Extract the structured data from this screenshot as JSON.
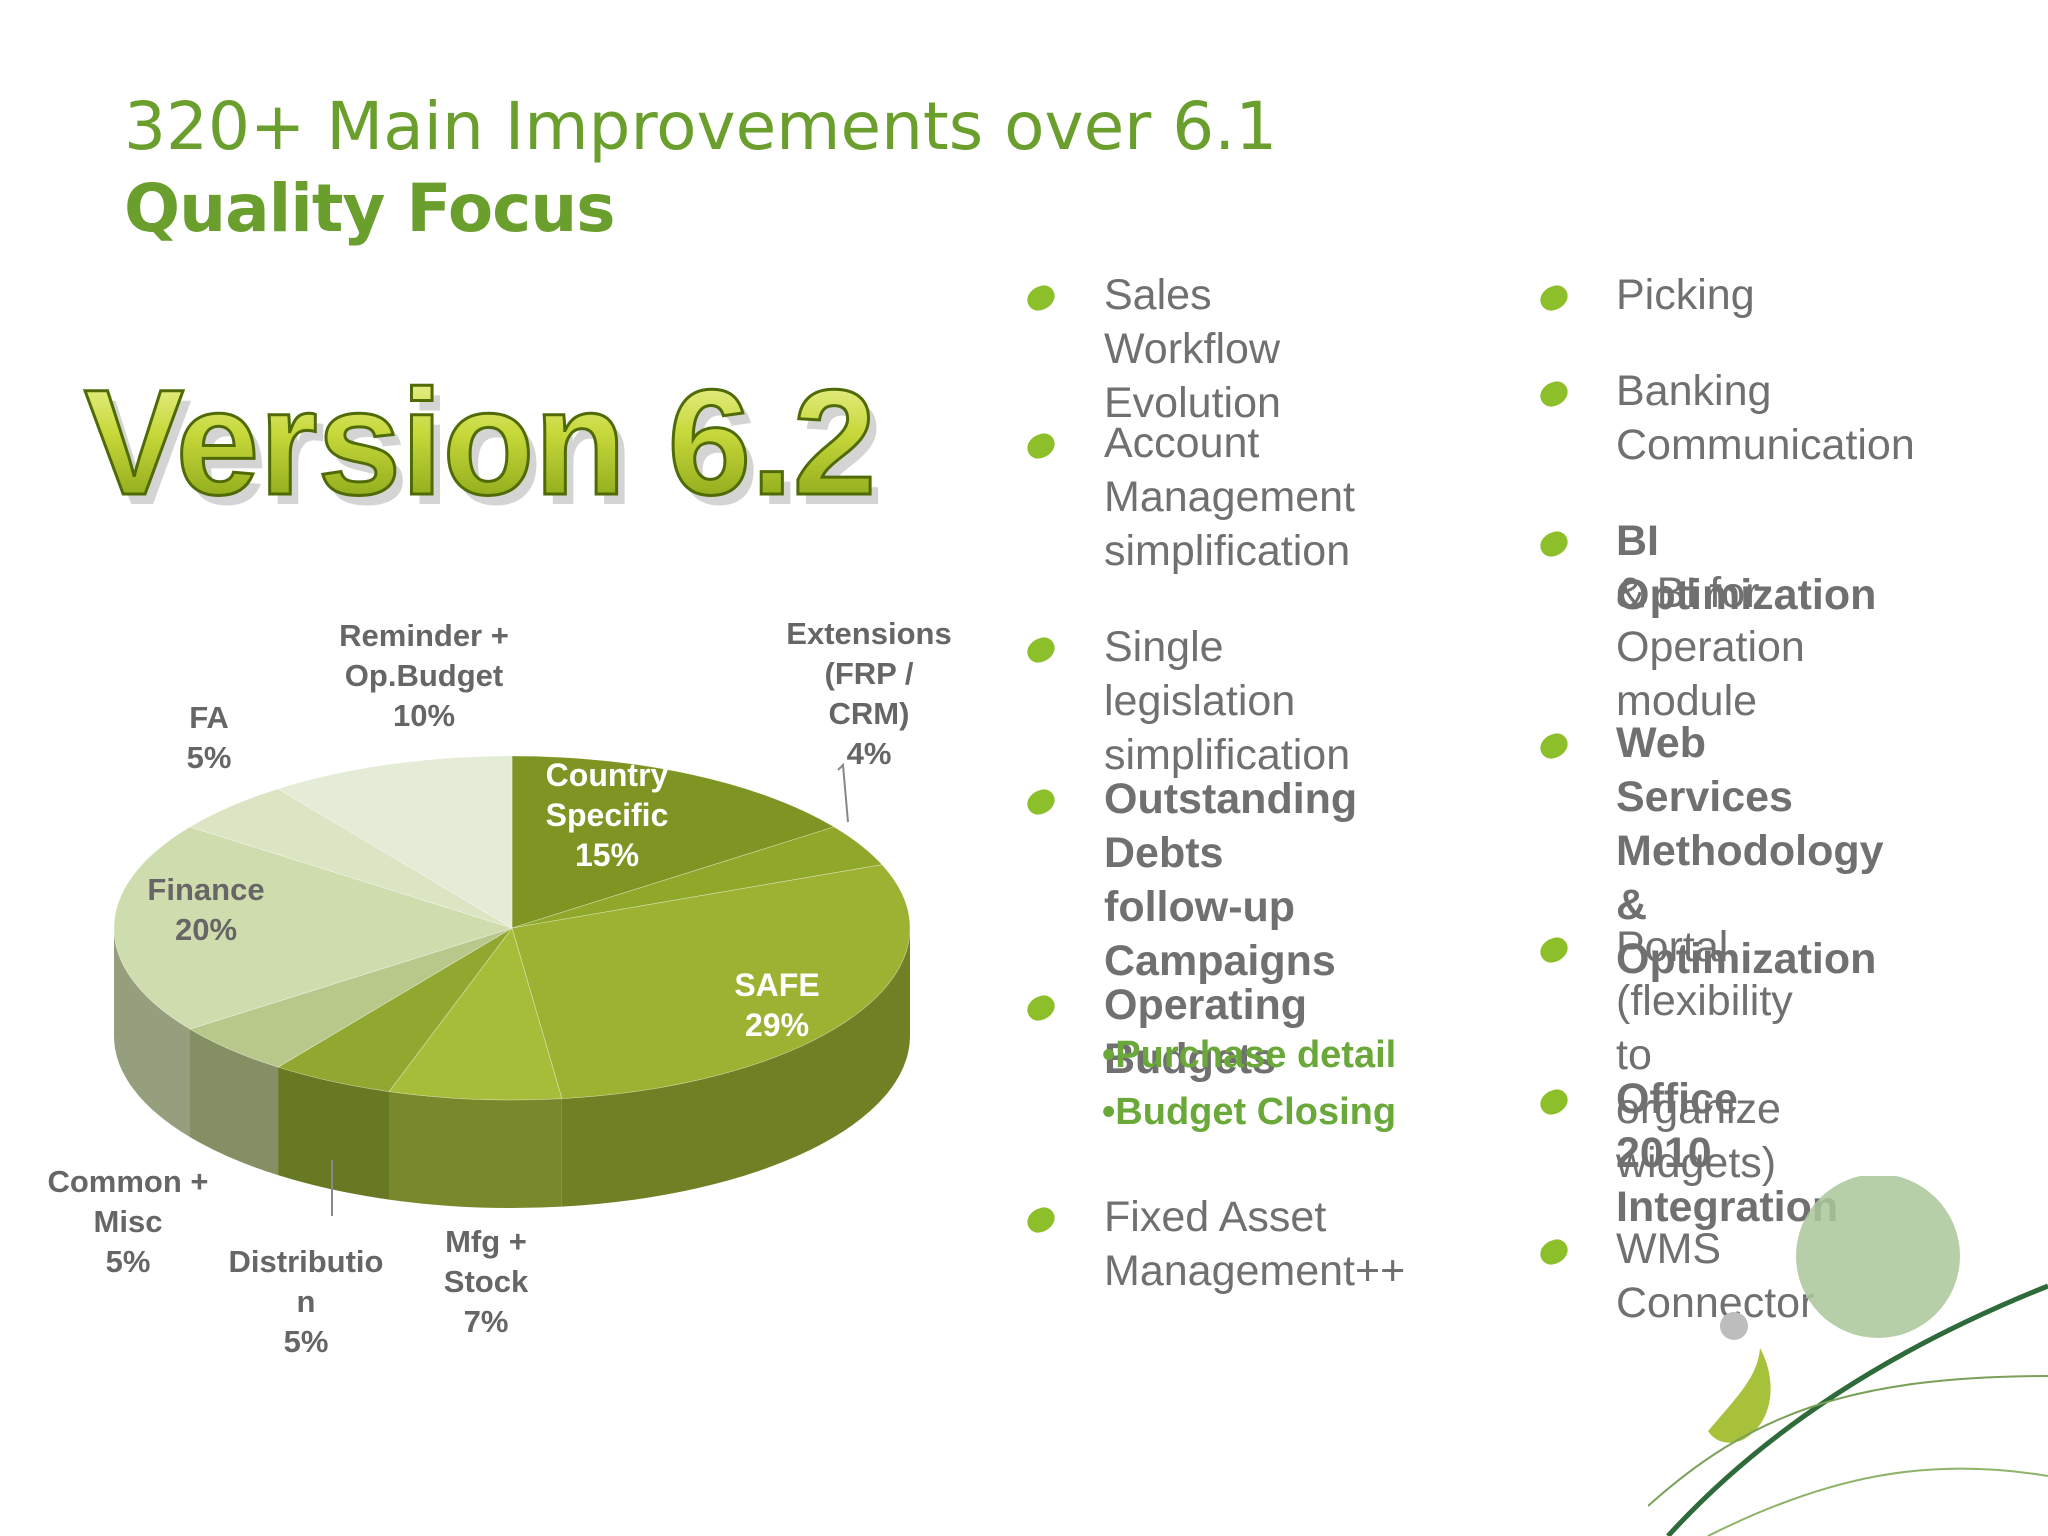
{
  "header": {
    "title_line1": "320+ Main Improvements over 6.1",
    "title_line2": "Quality Focus"
  },
  "logo": {
    "text": "Version 6.2"
  },
  "chart_data": {
    "type": "pie",
    "title": "",
    "slices": [
      {
        "label": "Country Specific",
        "value": 15,
        "pct_label": "15%"
      },
      {
        "label": "Extensions (FRP / CRM)",
        "value": 4,
        "pct_label": "4%"
      },
      {
        "label": "SAFE",
        "value": 29,
        "pct_label": "29%"
      },
      {
        "label": "Mfg + Stock",
        "value": 7,
        "pct_label": "7%"
      },
      {
        "label": "Distribution",
        "value": 5,
        "pct_label": "5%"
      },
      {
        "label": "Common + Misc",
        "value": 5,
        "pct_label": "5%"
      },
      {
        "label": "Finance",
        "value": 20,
        "pct_label": "20%"
      },
      {
        "label": "FA",
        "value": 5,
        "pct_label": "5%"
      },
      {
        "label": "Reminder + Op.Budget",
        "value": 10,
        "pct_label": "10%"
      }
    ],
    "label_lines": {
      "country": [
        "Country",
        "Specific",
        "15%"
      ],
      "extensions": [
        "Extensions",
        "(FRP /",
        "CRM)",
        "4%"
      ],
      "safe": [
        "SAFE",
        "29%"
      ],
      "mfg": [
        "Mfg +",
        "Stock",
        "7%"
      ],
      "distribution": [
        "Distributio",
        "n",
        "5%"
      ],
      "common": [
        "Common +",
        "Misc",
        "5%"
      ],
      "finance": [
        "Finance",
        "20%"
      ],
      "fa": [
        "FA",
        "5%"
      ],
      "reminder": [
        "Reminder +",
        "Op.Budget",
        "10%"
      ]
    },
    "colors": [
      "#7f9523",
      "#8fa82a",
      "#9db233",
      "#a6bd3a",
      "#90a830",
      "#b8c88a",
      "#cfdcae",
      "#dbe5c4",
      "#e4ebd6"
    ]
  },
  "columns": {
    "left": [
      {
        "text": "Sales Workflow\nEvolution",
        "bold": false
      },
      {
        "text": "Account\nManagement\nsimplification",
        "bold": false
      },
      {
        "text": "Single legislation\nsimplification",
        "bold": false
      },
      {
        "text": "Outstanding Debts\nfollow-up\nCampaigns",
        "bold": true
      },
      {
        "text": "Operating Budgets",
        "bold": true,
        "subs": [
          "•Purchase detail",
          "•Budget Closing"
        ]
      },
      {
        "text": "Fixed Asset\nManagement++",
        "bold": false
      }
    ],
    "right": [
      {
        "text": "Picking",
        "bold": false
      },
      {
        "text": "Banking\nCommunication",
        "bold": false
      },
      {
        "text": "BI Optimization",
        "bold": true,
        "extra": "& BI for Operation\nmodule"
      },
      {
        "text": "Web Services\nMethodology &\nOptimization",
        "bold": true
      },
      {
        "text": "Portal (flexibility to\norganize widgets)",
        "bold": false
      },
      {
        "text": "Office 2010\nIntegration",
        "bold": true
      },
      {
        "text": "WMS Connector",
        "bold": false
      }
    ]
  },
  "theme": {
    "accent": "#6a9e2d",
    "bullet": "#8cbf2a",
    "text": "#707070"
  }
}
